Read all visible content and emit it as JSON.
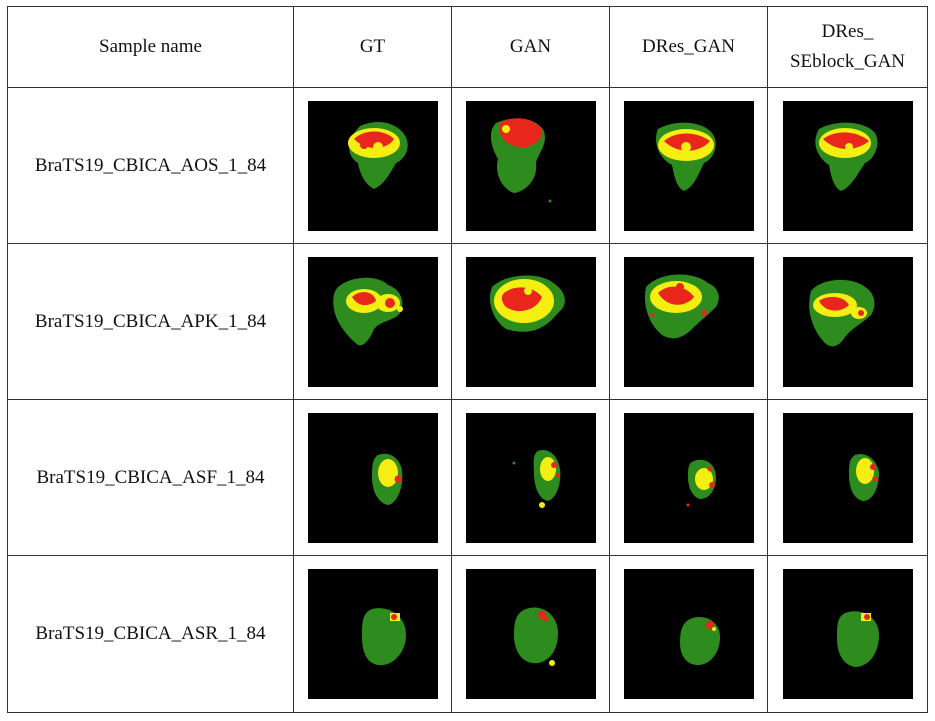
{
  "table": {
    "headers": {
      "sample": "Sample name",
      "gt": "GT",
      "gan": "GAN",
      "dres_gan": "DRes_GAN",
      "dres_se_line1": "DRes_",
      "dres_se_line2": "SEblock_GAN"
    },
    "rows": [
      {
        "name": "BraTS19_CBICA_AOS_1_84"
      },
      {
        "name": "BraTS19_CBICA_APK_1_84"
      },
      {
        "name": "BraTS19_CBICA_ASF_1_84"
      },
      {
        "name": "BraTS19_CBICA_ASR_1_84"
      }
    ]
  },
  "colors": {
    "background": "#000000",
    "edema": "#2e8b1e",
    "enhancing": "#f4ee12",
    "necrotic": "#e8261c"
  }
}
